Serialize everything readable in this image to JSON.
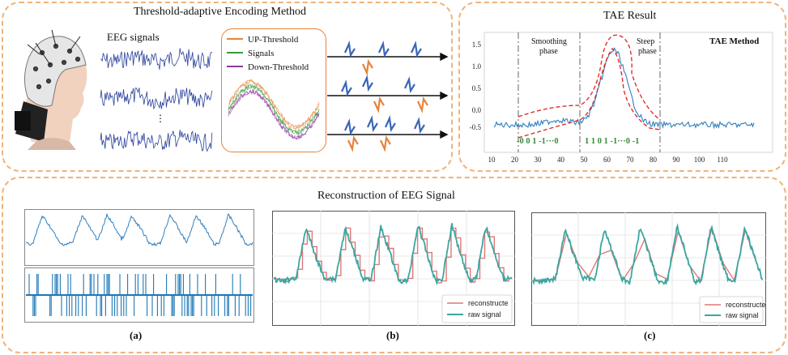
{
  "top_left": {
    "title": "Threshold-adaptive  Encoding  Method",
    "eeg_label": "EEG signals",
    "legend": [
      "UP-Threshold",
      "Signals",
      "Down-Threshold"
    ],
    "colors": {
      "up": "#e8823a",
      "signal": "#3a9a3a",
      "down": "#8a3aa0",
      "spike_blue": "#3a66b8",
      "spike_orange": "#e8823a"
    }
  },
  "top_right": {
    "title": "TAE Result",
    "method": "TAE Method",
    "smooth": "Smoothing\nphase",
    "steep": "Steep\nphase",
    "code1": "-0 0 1 -1···0",
    "code2": "1 1 0 1 -1···0 -1",
    "y_ticks": [
      "1.5",
      "1.0",
      "0.5",
      "0.0",
      "-0.5"
    ],
    "x_ticks": [
      "10",
      "20",
      "30",
      "40",
      "50",
      "60",
      "70",
      "80",
      "90",
      "100",
      "110"
    ]
  },
  "bottom": {
    "title": "Reconstruction  of EEG Signal",
    "caption_a": "(a)",
    "caption_b": "(b)",
    "caption_c": "(c)",
    "legend_reconstructed": "reconstructe",
    "legend_raw": "raw signal"
  }
}
